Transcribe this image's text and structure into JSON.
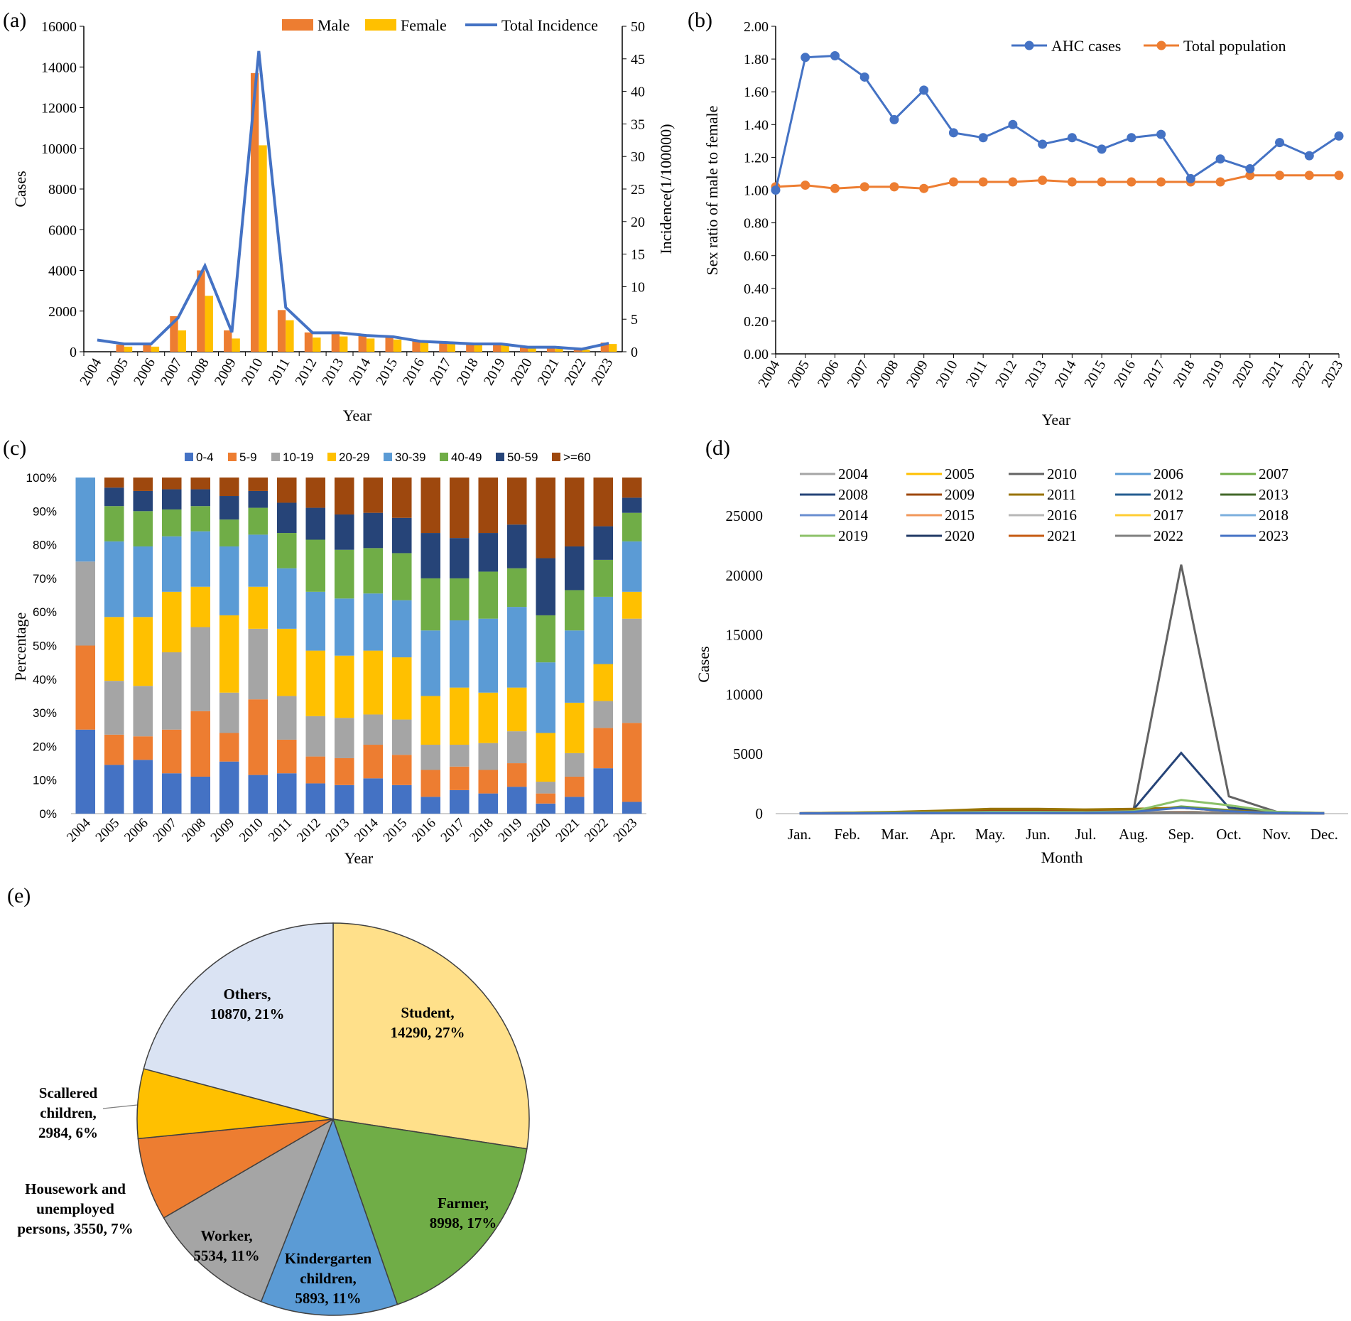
{
  "chart_data": [
    {
      "id": "a",
      "panel_label": "(a)",
      "type": "bar",
      "categories": [
        "2004",
        "2005",
        "2006",
        "2007",
        "2008",
        "2009",
        "2010",
        "2011",
        "2012",
        "2013",
        "2014",
        "2015",
        "2016",
        "2017",
        "2018",
        "2019",
        "2020",
        "2021",
        "2022",
        "2023"
      ],
      "series": [
        {
          "name": "Male",
          "type": "bar",
          "axis": "left",
          "color": "#ED7D31",
          "values": [
            0,
            350,
            350,
            1750,
            4000,
            1050,
            13700,
            2050,
            950,
            900,
            800,
            700,
            550,
            500,
            450,
            450,
            230,
            200,
            120,
            450
          ]
        },
        {
          "name": "Female",
          "type": "bar",
          "axis": "left",
          "color": "#FFC000",
          "values": [
            0,
            250,
            250,
            1050,
            2750,
            650,
            10150,
            1550,
            700,
            750,
            650,
            600,
            450,
            400,
            400,
            350,
            200,
            150,
            100,
            380
          ]
        },
        {
          "name": "Total Incidence",
          "type": "line",
          "axis": "right",
          "color": "#4472C4",
          "values": [
            1.8,
            1.2,
            1.2,
            5.2,
            13.2,
            3.0,
            46.2,
            6.8,
            2.9,
            2.9,
            2.5,
            2.3,
            1.6,
            1.4,
            1.2,
            1.2,
            0.7,
            0.7,
            0.4,
            1.3
          ]
        }
      ],
      "xlabel": "Year",
      "ylabel": "Cases",
      "y2label": "Incidence(1/100000)",
      "ylim": [
        0,
        16000
      ],
      "y2lim": [
        0,
        50
      ],
      "yticks": [
        "0",
        "2000",
        "4000",
        "6000",
        "8000",
        "10000",
        "12000",
        "14000",
        "16000"
      ],
      "y2ticks": [
        "0",
        "5",
        "10",
        "15",
        "20",
        "25",
        "30",
        "35",
        "40",
        "45",
        "50"
      ],
      "legend_position": "top"
    },
    {
      "id": "b",
      "panel_label": "(b)",
      "type": "line",
      "categories": [
        "2004",
        "2005",
        "2006",
        "2007",
        "2008",
        "2009",
        "2010",
        "2011",
        "2012",
        "2013",
        "2014",
        "2015",
        "2016",
        "2017",
        "2018",
        "2019",
        "2020",
        "2021",
        "2022",
        "2023"
      ],
      "series": [
        {
          "name": "AHC cases",
          "color": "#4472C4",
          "values": [
            1.0,
            1.81,
            1.82,
            1.69,
            1.43,
            1.61,
            1.35,
            1.32,
            1.4,
            1.28,
            1.32,
            1.25,
            1.32,
            1.34,
            1.07,
            1.19,
            1.13,
            1.29,
            1.21,
            1.33
          ]
        },
        {
          "name": "Total population",
          "color": "#ED7D31",
          "values": [
            1.02,
            1.03,
            1.01,
            1.02,
            1.02,
            1.01,
            1.05,
            1.05,
            1.05,
            1.06,
            1.05,
            1.05,
            1.05,
            1.05,
            1.05,
            1.05,
            1.09,
            1.09,
            1.09,
            1.09
          ]
        }
      ],
      "xlabel": "Year",
      "ylabel": "Sex ratio of male to female",
      "ylim": [
        0,
        2
      ],
      "yticks": [
        "0.00",
        "0.20",
        "0.40",
        "0.60",
        "0.80",
        "1.00",
        "1.20",
        "1.40",
        "1.60",
        "1.80",
        "2.00"
      ],
      "legend_position": "top-right"
    },
    {
      "id": "c",
      "panel_label": "(c)",
      "type": "bar",
      "stacked": true,
      "categories": [
        "2004",
        "2005",
        "2006",
        "2007",
        "2008",
        "2009",
        "2010",
        "2011",
        "2012",
        "2013",
        "2014",
        "2015",
        "2016",
        "2017",
        "2018",
        "2019",
        "2020",
        "2021",
        "2022",
        "2023"
      ],
      "series": [
        {
          "name": "0-4",
          "color": "#4472C4",
          "values": [
            25,
            14.5,
            16,
            12,
            11,
            15.5,
            11.5,
            12,
            9,
            8.5,
            10.5,
            8.5,
            5,
            7,
            6,
            8,
            3,
            5,
            13.5,
            3.5
          ]
        },
        {
          "name": "5-9",
          "color": "#ED7D31",
          "values": [
            25,
            9,
            7,
            13,
            19.5,
            8.5,
            22.5,
            10,
            8,
            8,
            10,
            9,
            8,
            7,
            7,
            7,
            3,
            6,
            12,
            23.5
          ]
        },
        {
          "name": "10-19",
          "color": "#A5A5A5",
          "values": [
            25,
            16,
            15,
            23,
            25,
            12,
            21,
            13,
            12,
            12,
            9,
            10.5,
            7.5,
            6.5,
            8,
            9.5,
            3.5,
            7,
            8,
            31
          ]
        },
        {
          "name": "20-29",
          "color": "#FFC000",
          "values": [
            0,
            19,
            20.5,
            18,
            12,
            23,
            12.5,
            20,
            19.5,
            18.5,
            19,
            18.5,
            14.5,
            17,
            15,
            13,
            14.5,
            15,
            11,
            8
          ]
        },
        {
          "name": "30-39",
          "color": "#5B9BD5",
          "values": [
            25,
            22.5,
            21,
            16.5,
            16.5,
            20.5,
            15.5,
            18,
            17.5,
            17,
            17,
            17,
            19.5,
            20,
            22,
            24,
            21,
            21.5,
            20,
            15
          ]
        },
        {
          "name": "40-49",
          "color": "#70AD47",
          "values": [
            0,
            10.5,
            10.5,
            8,
            7.5,
            8,
            8,
            10.5,
            15.5,
            14.5,
            13.5,
            14,
            15.5,
            12.5,
            14,
            11.5,
            14,
            12,
            11,
            8.5
          ]
        },
        {
          "name": "50-59",
          "color": "#264478",
          "values": [
            0,
            5.5,
            6,
            6,
            5,
            7,
            5,
            9,
            9.5,
            10.5,
            10.5,
            10.5,
            13.5,
            12,
            11.5,
            13,
            17,
            13,
            10,
            4.5
          ]
        },
        {
          "name": ">=60",
          "color": "#9E480E",
          "values": [
            0,
            3,
            4,
            3.5,
            3.5,
            5.5,
            4,
            7.5,
            9,
            11,
            10.5,
            12,
            16.5,
            18,
            16.5,
            14,
            24,
            20.5,
            14.5,
            6
          ]
        }
      ],
      "xlabel": "Year",
      "ylabel": "Percentage",
      "ylim": [
        0,
        100
      ],
      "yticks": [
        "0%",
        "10%",
        "20%",
        "30%",
        "40%",
        "50%",
        "60%",
        "70%",
        "80%",
        "90%",
        "100%"
      ],
      "legend_position": "top"
    },
    {
      "id": "d",
      "panel_label": "(d)",
      "type": "line",
      "categories": [
        "Jan.",
        "Feb.",
        "Mar.",
        "Apr.",
        "May.",
        "Jun.",
        "Jul.",
        "Aug.",
        "Sep.",
        "Oct.",
        "Nov.",
        "Dec."
      ],
      "series": [
        {
          "name": "2004",
          "color": "#A5A5A5",
          "values": [
            10,
            10,
            15,
            20,
            20,
            20,
            20,
            20,
            30,
            20,
            15,
            10
          ]
        },
        {
          "name": "2005",
          "color": "#FFC000",
          "values": [
            20,
            30,
            40,
            50,
            60,
            60,
            50,
            60,
            150,
            80,
            40,
            20
          ]
        },
        {
          "name": "2010",
          "color": "#636363",
          "values": [
            30,
            60,
            100,
            150,
            200,
            250,
            200,
            300,
            20900,
            1450,
            150,
            50
          ]
        },
        {
          "name": "2006",
          "color": "#5B9BD5",
          "values": [
            20,
            30,
            40,
            50,
            60,
            60,
            50,
            60,
            150,
            80,
            40,
            20
          ]
        },
        {
          "name": "2007",
          "color": "#70AD47",
          "values": [
            20,
            40,
            60,
            80,
            100,
            100,
            90,
            120,
            600,
            300,
            80,
            30
          ]
        },
        {
          "name": "2008",
          "color": "#264478",
          "values": [
            30,
            60,
            100,
            150,
            200,
            250,
            200,
            350,
            5100,
            500,
            100,
            40
          ]
        },
        {
          "name": "2009",
          "color": "#9E480E",
          "values": [
            40,
            80,
            130,
            180,
            300,
            300,
            250,
            300,
            500,
            200,
            80,
            30
          ]
        },
        {
          "name": "2011",
          "color": "#997300",
          "values": [
            40,
            80,
            150,
            250,
            400,
            400,
            350,
            400,
            500,
            250,
            100,
            40
          ]
        },
        {
          "name": "2012",
          "color": "#255E91",
          "values": [
            20,
            40,
            60,
            80,
            100,
            100,
            90,
            100,
            150,
            80,
            40,
            20
          ]
        },
        {
          "name": "2013",
          "color": "#43682B",
          "values": [
            20,
            40,
            60,
            80,
            100,
            100,
            90,
            100,
            150,
            80,
            40,
            20
          ]
        },
        {
          "name": "2014",
          "color": "#698ED0",
          "values": [
            20,
            40,
            60,
            80,
            100,
            100,
            90,
            100,
            150,
            80,
            40,
            20
          ]
        },
        {
          "name": "2015",
          "color": "#F1975A",
          "values": [
            20,
            40,
            60,
            80,
            100,
            100,
            90,
            100,
            150,
            80,
            40,
            20
          ]
        },
        {
          "name": "2016",
          "color": "#B7B7B7",
          "values": [
            20,
            30,
            50,
            60,
            80,
            80,
            70,
            80,
            120,
            60,
            30,
            20
          ]
        },
        {
          "name": "2017",
          "color": "#FFCD33",
          "values": [
            20,
            30,
            50,
            60,
            80,
            80,
            70,
            80,
            120,
            60,
            30,
            20
          ]
        },
        {
          "name": "2018",
          "color": "#7CAFDD",
          "values": [
            20,
            30,
            50,
            60,
            80,
            80,
            70,
            80,
            120,
            60,
            30,
            20
          ]
        },
        {
          "name": "2019",
          "color": "#8CC168",
          "values": [
            30,
            50,
            80,
            100,
            150,
            150,
            130,
            200,
            1150,
            700,
            150,
            40
          ]
        },
        {
          "name": "2020",
          "color": "#203864",
          "values": [
            10,
            20,
            30,
            40,
            50,
            50,
            40,
            50,
            80,
            40,
            20,
            10
          ]
        },
        {
          "name": "2021",
          "color": "#C55A11",
          "values": [
            10,
            20,
            30,
            40,
            50,
            50,
            40,
            50,
            80,
            40,
            20,
            10
          ]
        },
        {
          "name": "2022",
          "color": "#7F7F7F",
          "values": [
            10,
            20,
            30,
            40,
            50,
            50,
            40,
            50,
            60,
            40,
            20,
            10
          ]
        },
        {
          "name": "2023",
          "color": "#4472C4",
          "values": [
            20,
            30,
            40,
            50,
            60,
            60,
            60,
            150,
            500,
            200,
            60,
            20
          ]
        }
      ],
      "xlabel": "Month",
      "ylabel": "Cases",
      "ylim": [
        0,
        25000
      ],
      "yticks": [
        "0",
        "5000",
        "10000",
        "15000",
        "20000",
        "25000"
      ],
      "legend_position": "top"
    },
    {
      "id": "e",
      "panel_label": "(e)",
      "type": "pie",
      "slices": [
        {
          "name": "Student",
          "value": 14290,
          "percent": "27%",
          "color": "#FFE08A",
          "lines": [
            "Student,",
            "14290, 27%"
          ]
        },
        {
          "name": "Farmer",
          "value": 8998,
          "percent": "17%",
          "color": "#70AD47",
          "lines": [
            "Farmer,",
            "8998, 17%"
          ]
        },
        {
          "name": "Kindergarten children",
          "value": 5893,
          "percent": "11%",
          "color": "#5B9BD5",
          "lines": [
            "Kindergarten",
            "children,",
            "5893, 11%"
          ]
        },
        {
          "name": "Worker",
          "value": 5534,
          "percent": "11%",
          "color": "#A5A5A5",
          "lines": [
            "Worker,",
            "5534, 11%"
          ]
        },
        {
          "name": "Housework and unemployed persons",
          "value": 3550,
          "percent": "7%",
          "color": "#ED7D31",
          "lines": [
            "Housework and",
            "unemployed",
            "persons, 3550, 7%"
          ]
        },
        {
          "name": "Scallered children",
          "value": 2984,
          "percent": "6%",
          "color": "#FFC000",
          "lines": [
            "Scallered",
            "children,",
            "2984, 6%"
          ]
        },
        {
          "name": "Others",
          "value": 10870,
          "percent": "21%",
          "color": "#DAE3F3",
          "lines": [
            "Others,",
            "10870, 21%"
          ]
        }
      ]
    }
  ]
}
